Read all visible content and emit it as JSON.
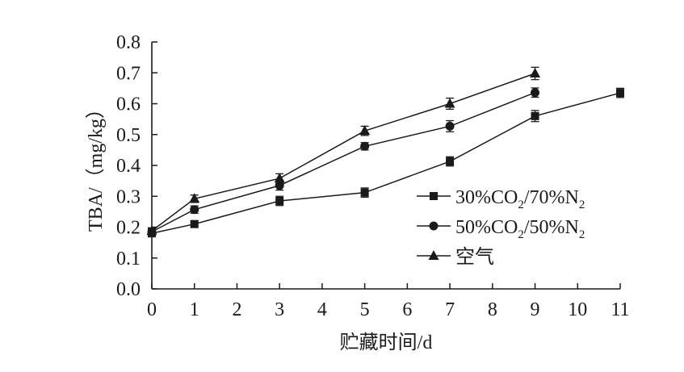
{
  "chart_data": {
    "type": "line",
    "xlabel": "贮藏时间/d",
    "ylabel": "TBA/（mg/kg）",
    "xlim": [
      0,
      11
    ],
    "ylim": [
      0.0,
      0.8
    ],
    "x_ticks": [
      "0",
      "1",
      "2",
      "3",
      "4",
      "5",
      "6",
      "7",
      "8",
      "9",
      "10",
      "11"
    ],
    "y_ticks": [
      "0.0",
      "0.1",
      "0.2",
      "0.3",
      "0.4",
      "0.5",
      "0.6",
      "0.7",
      "0.8"
    ],
    "grid": false,
    "legend_position": "right",
    "series": [
      {
        "name": "30%CO₂/70%N₂",
        "legend_parts": [
          "30%CO",
          "2",
          "/70%N",
          "2"
        ],
        "marker": "square",
        "x": [
          0,
          1,
          3,
          5,
          7,
          9,
          11
        ],
        "values": [
          0.18,
          0.21,
          0.285,
          0.312,
          0.413,
          0.56,
          0.635
        ],
        "errors": [
          0.01,
          0.01,
          0.015,
          0.015,
          0.015,
          0.018,
          0.015
        ]
      },
      {
        "name": "50%CO₂/50%N₂",
        "legend_parts": [
          "50%CO",
          "2",
          "/50%N",
          "2"
        ],
        "marker": "circle",
        "x": [
          0,
          1,
          3,
          5,
          7,
          9
        ],
        "values": [
          0.185,
          0.257,
          0.335,
          0.462,
          0.527,
          0.636
        ],
        "errors": [
          0.01,
          0.012,
          0.015,
          0.012,
          0.018,
          0.015
        ]
      },
      {
        "name": "空气",
        "legend_parts": [
          "空气"
        ],
        "marker": "triangle",
        "x": [
          0,
          1,
          3,
          5,
          7,
          9
        ],
        "values": [
          0.188,
          0.292,
          0.358,
          0.512,
          0.6,
          0.698
        ],
        "errors": [
          0.01,
          0.012,
          0.015,
          0.015,
          0.018,
          0.02
        ]
      }
    ]
  }
}
